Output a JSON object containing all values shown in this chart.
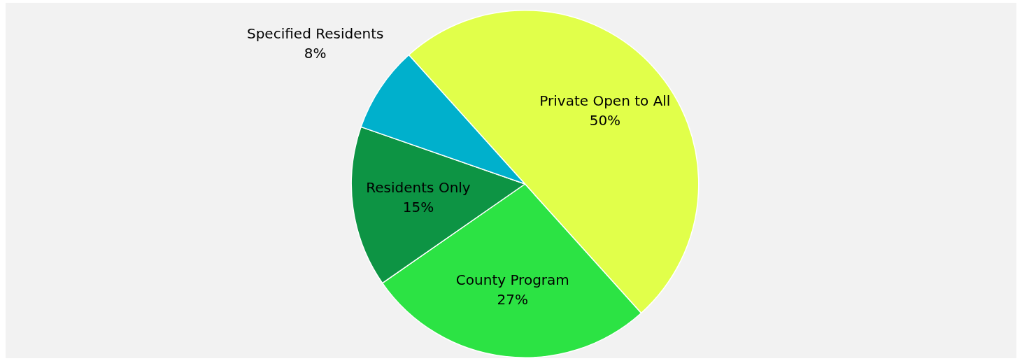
{
  "chart_data": {
    "type": "pie",
    "categories": [
      "Private Open to All",
      "County Program",
      "Residents Only",
      "Specified Residents"
    ],
    "values": [
      50,
      27,
      15,
      8
    ],
    "colors": [
      "#e1ff4a",
      "#2ce344",
      "#0d9444",
      "#00b0cc"
    ],
    "value_labels": [
      "50%",
      "27%",
      "15%",
      "8%"
    ],
    "legend": false
  }
}
